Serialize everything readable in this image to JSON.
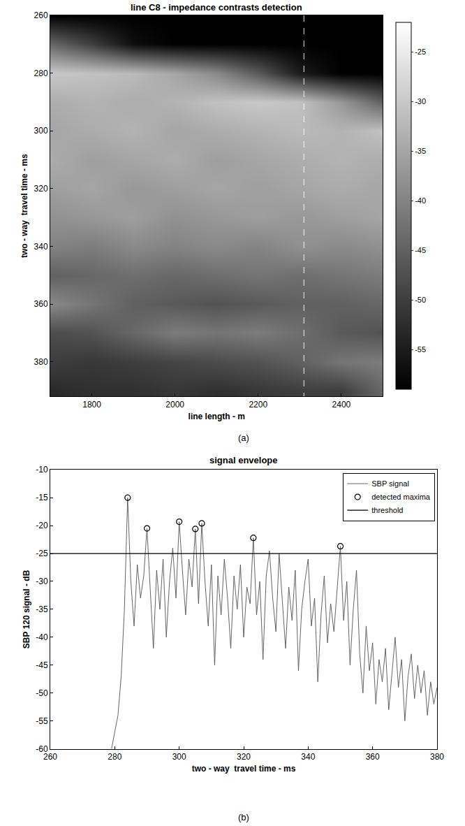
{
  "chart_data": [
    {
      "type": "heatmap",
      "title": "line C8 - impedance contrasts detection",
      "panel": "(a)",
      "x_label": "line length - m",
      "y_label": "two - way  travel time - ms",
      "x": [
        1700,
        1800,
        1900,
        2000,
        2100,
        2200,
        2300,
        2400,
        2500
      ],
      "y": [
        260,
        270,
        280,
        290,
        300,
        310,
        320,
        330,
        340,
        350,
        360,
        370,
        380,
        390
      ],
      "cells": [
        [
          -59,
          -59,
          -59,
          -59,
          -59,
          -59,
          -59,
          -59,
          -59
        ],
        [
          -44,
          -50,
          -57,
          -59,
          -59,
          -59,
          -59,
          -59,
          -59
        ],
        [
          -30,
          -31,
          -32,
          -35,
          -39,
          -46,
          -55,
          -59,
          -59
        ],
        [
          -34,
          -33,
          -34,
          -33,
          -31,
          -30,
          -31,
          -37,
          -45
        ],
        [
          -35,
          -34,
          -33,
          -35,
          -34,
          -33,
          -32,
          -33,
          -31
        ],
        [
          -34,
          -36,
          -35,
          -34,
          -36,
          -35,
          -34,
          -33,
          -34
        ],
        [
          -36,
          -35,
          -37,
          -36,
          -35,
          -36,
          -35,
          -34,
          -35
        ],
        [
          -38,
          -37,
          -36,
          -38,
          -37,
          -36,
          -37,
          -36,
          -35
        ],
        [
          -40,
          -41,
          -39,
          -40,
          -39,
          -40,
          -38,
          -39,
          -38
        ],
        [
          -45,
          -44,
          -43,
          -44,
          -43,
          -42,
          -43,
          -42,
          -41
        ],
        [
          -39,
          -42,
          -45,
          -46,
          -47,
          -46,
          -45,
          -45,
          -44
        ],
        [
          -48,
          -47,
          -44,
          -41,
          -42,
          -41,
          -43,
          -46,
          -47
        ],
        [
          -50,
          -51,
          -50,
          -49,
          -48,
          -47,
          -45,
          -42,
          -41
        ],
        [
          -53,
          -52,
          -52,
          -51,
          -52,
          -51,
          -50,
          -50,
          -44
        ]
      ],
      "colorbar": {
        "range": [
          -59,
          -22
        ],
        "ticks": [
          -25,
          -30,
          -35,
          -40,
          -45,
          -50,
          -55
        ]
      },
      "xlim": [
        1700,
        2500
      ],
      "xticks": [
        1800,
        2000,
        2200,
        2400
      ],
      "ylim": [
        392,
        260
      ],
      "yticks": [
        260,
        280,
        300,
        320,
        340,
        360,
        380
      ],
      "grid": false,
      "series": [
        {
          "type": "line",
          "line_style": "dashed",
          "color": "#ffffff",
          "x": [
            2310,
            2310
          ],
          "values": [
            260,
            392
          ]
        }
      ]
    },
    {
      "type": "line",
      "title": "signal envelope",
      "panel": "(b)",
      "x_label": "two - way  travel time - ms",
      "y_label": "SBP 120 signal - dB",
      "xlim": [
        260,
        380
      ],
      "xticks": [
        260,
        280,
        300,
        320,
        340,
        360,
        380
      ],
      "ylim": [
        -60,
        -10
      ],
      "yticks": [
        -60,
        -55,
        -50,
        -45,
        -40,
        -35,
        -30,
        -25,
        -20,
        -15,
        -10
      ],
      "grid": false,
      "legend": "top right",
      "series": [
        {
          "name": "SBP signal",
          "type": "line",
          "line_style": "solid",
          "color": "#555555",
          "x": [
            279,
            280,
            281,
            282,
            283,
            284,
            285,
            286,
            287,
            288,
            289,
            290,
            291,
            292,
            293,
            294,
            295,
            296,
            297,
            298,
            299,
            300,
            301,
            302,
            303,
            304,
            305,
            306,
            307,
            308,
            309,
            310,
            311,
            312,
            313,
            314,
            315,
            316,
            317,
            318,
            319,
            320,
            321,
            322,
            323,
            324,
            325,
            326,
            327,
            328,
            329,
            330,
            331,
            332,
            333,
            334,
            335,
            336,
            337,
            338,
            339,
            340,
            341,
            342,
            343,
            344,
            345,
            346,
            347,
            348,
            349,
            350,
            351,
            352,
            353,
            354,
            355,
            356,
            357,
            358,
            359,
            360,
            361,
            362,
            363,
            364,
            365,
            366,
            367,
            368,
            369,
            370,
            371,
            372,
            373,
            374,
            375,
            376,
            377,
            378,
            379,
            380
          ],
          "values": [
            -60,
            -57,
            -54,
            -47,
            -35,
            -15,
            -30,
            -38,
            -27,
            -33,
            -29,
            -20.5,
            -31,
            -42,
            -28,
            -35,
            -26,
            -40,
            -30,
            -24,
            -33,
            -19.3,
            -28,
            -36,
            -26,
            -31,
            -20.6,
            -34,
            -19.6,
            -30,
            -38,
            -27,
            -45,
            -29,
            -36,
            -26,
            -33,
            -42,
            -29,
            -35,
            -27,
            -40,
            -31,
            -34,
            -22.2,
            -36,
            -30,
            -44,
            -29,
            -24.5,
            -33,
            -39,
            -25,
            -34,
            -42,
            -31,
            -37,
            -28,
            -46,
            -35,
            -30,
            -26,
            -38,
            -33,
            -48,
            -36,
            -29,
            -41,
            -34,
            -39,
            -31,
            -23.7,
            -37,
            -30,
            -45,
            -35,
            -28,
            -43,
            -50,
            -38,
            -46,
            -41,
            -52,
            -44,
            -48,
            -42,
            -53,
            -46,
            -40,
            -49,
            -44,
            -55,
            -47,
            -43,
            -51,
            -45,
            -50,
            -46,
            -54,
            -48,
            -52,
            -49
          ]
        },
        {
          "name": "detected maxima",
          "type": "scatter",
          "marker": "circle-open",
          "color": "#000000",
          "x": [
            284,
            290,
            300,
            305,
            307,
            323,
            350
          ],
          "values": [
            -15,
            -20.5,
            -19.3,
            -20.6,
            -19.6,
            -22.2,
            -23.7
          ]
        },
        {
          "name": "threshold",
          "type": "line",
          "line_style": "solid",
          "color": "#000000",
          "x": [
            260,
            380
          ],
          "values": [
            -25,
            -25
          ]
        }
      ]
    }
  ]
}
